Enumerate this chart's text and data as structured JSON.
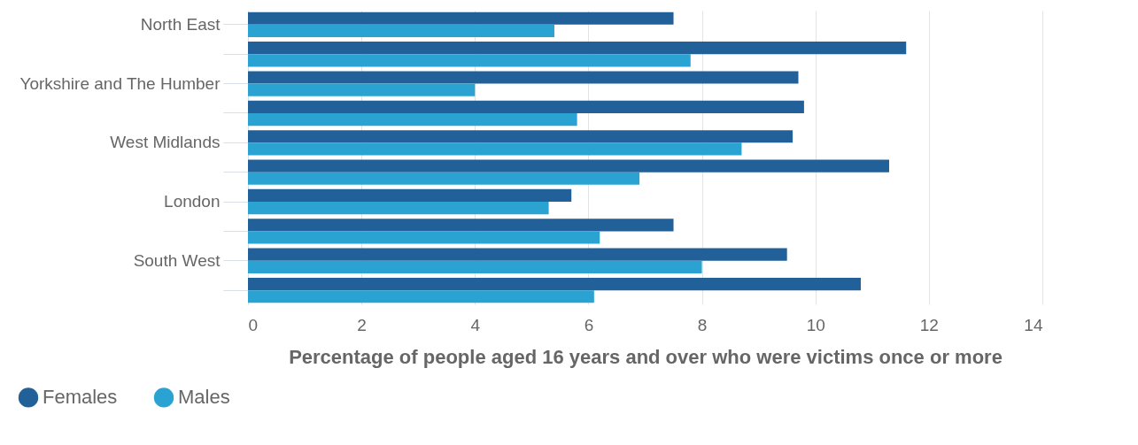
{
  "chart_data": {
    "type": "bar",
    "orientation": "horizontal",
    "categories": [
      "North East",
      null,
      "Yorkshire and The Humber",
      null,
      "West Midlands",
      null,
      "London",
      null,
      "South West",
      null
    ],
    "series": [
      {
        "name": "Females",
        "color": "#22609a",
        "values": [
          7.5,
          11.6,
          9.7,
          9.8,
          9.6,
          11.3,
          5.7,
          7.5,
          9.5,
          10.8
        ]
      },
      {
        "name": "Males",
        "color": "#2aa3d2",
        "values": [
          5.4,
          7.8,
          4.0,
          5.8,
          8.7,
          6.9,
          5.3,
          6.2,
          8.0,
          6.1
        ]
      }
    ],
    "xlabel": "Percentage of people aged 16 years and over who were victims once or more",
    "xlim": [
      0,
      14
    ],
    "xticks": [
      0,
      2,
      4,
      6,
      8,
      10,
      12,
      14
    ],
    "grid": "x",
    "legend": "bottom"
  }
}
